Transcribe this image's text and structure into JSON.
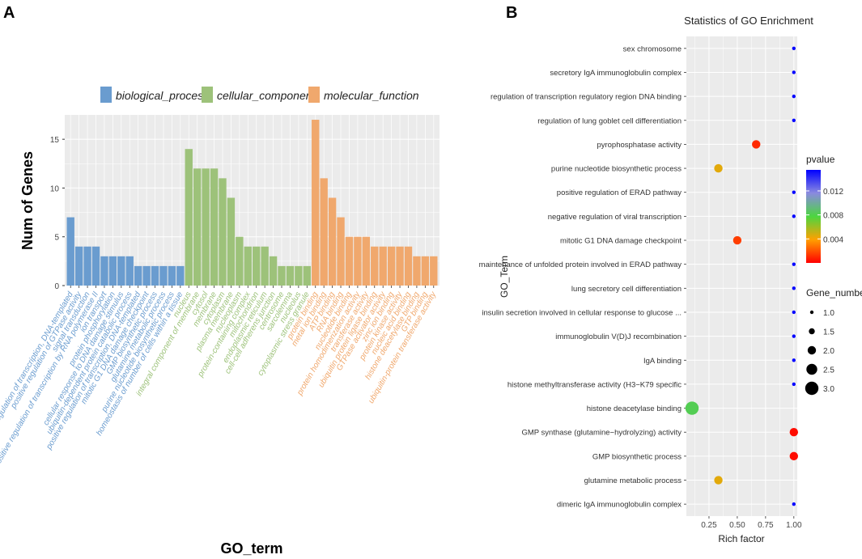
{
  "panel_labels": {
    "a": "A",
    "b": "B"
  },
  "chart_data": [
    {
      "type": "bar",
      "panel": "A",
      "ylabel": "Num of Genes",
      "xlabel": "GO_term",
      "ylim": [
        0,
        17.5
      ],
      "yticks": [
        0,
        5,
        10,
        15
      ],
      "legend": [
        {
          "name": "biological_process",
          "color": "#6a9ccf"
        },
        {
          "name": "cellular_component",
          "color": "#9dc27a"
        },
        {
          "name": "molecular_function",
          "color": "#f0a86d"
        }
      ],
      "categories": [
        "regulation of transcription, DNA-templated",
        "positive regulation of GTPase activity",
        "signal transduction",
        "positive regulation of transcription by RNA polymerase II",
        "ion transport",
        "protein phosphorylation",
        "cellular response to DNA damage stimulus",
        "ubiquitin-dependent protein catabolic process",
        "positive regulation of transcription, DNA-templated",
        "mitotic G1 DNA damage checkpoint",
        "GMP biosynthetic process",
        "glutamine metabolic process",
        "purine nucleotide biosynthetic process",
        "homeostasis of number of cells within a tissue",
        "nucleus",
        "integral component of membrane",
        "cytosol",
        "membrane",
        "cytoplasm",
        "plasma membrane",
        "nucleoplasm",
        "protein-containing complex",
        "mitochondrion",
        "endoplasmic reticulum",
        "cell-cell adherens junction",
        "centrosome",
        "sarcolemma",
        "nucleolus",
        "cytoplasmic stress granule",
        "protein binding",
        "metal ion binding",
        "ATP binding",
        "RNA binding",
        "nucleotide binding",
        "protein homodimerization activity",
        "transferase activity",
        "ubiquitin protein ligase binding",
        "GTPase activator activity",
        "zinc ion binding",
        "protein kinase activity",
        "nucleic acid binding",
        "histone deacetylase binding",
        "GTP binding",
        "ubiquitin-protein transferase activity"
      ],
      "values": [
        7,
        4,
        4,
        4,
        3,
        3,
        3,
        3,
        2,
        2,
        2,
        2,
        2,
        2,
        14,
        12,
        12,
        12,
        11,
        9,
        5,
        4,
        4,
        4,
        3,
        2,
        2,
        2,
        2,
        17,
        11,
        9,
        7,
        5,
        5,
        5,
        4,
        4,
        4,
        4,
        4,
        3,
        3,
        3
      ],
      "groups": [
        0,
        0,
        0,
        0,
        0,
        0,
        0,
        0,
        0,
        0,
        0,
        0,
        0,
        0,
        1,
        1,
        1,
        1,
        1,
        1,
        1,
        1,
        1,
        1,
        1,
        1,
        1,
        1,
        1,
        2,
        2,
        2,
        2,
        2,
        2,
        2,
        2,
        2,
        2,
        2,
        2,
        2,
        2,
        2
      ]
    },
    {
      "type": "scatter",
      "panel": "B",
      "title": "Statistics of GO Enrichment",
      "xlabel": "Rich factor",
      "ylabel": "GO_Term",
      "xlim": [
        0.05,
        1.03
      ],
      "xticks": [
        "0.25",
        "0.50",
        "0.75",
        "1.00"
      ],
      "xtick_values": [
        0.25,
        0.5,
        0.75,
        1.0
      ],
      "terms": [
        "sex chromosome",
        "secretory IgA immunoglobulin complex",
        "regulation of transcription regulatory region DNA binding",
        "regulation of lung goblet cell differentiation",
        "pyrophosphatase activity",
        "purine nucleotide biosynthetic process",
        "positive regulation of ERAD pathway",
        "negative regulation of viral transcription",
        "mitotic G1 DNA damage checkpoint",
        "maintenance of unfolded protein involved in ERAD pathway",
        "lung secretory cell differentiation",
        "insulin secretion involved in cellular response to glucose ...",
        "immunoglobulin V(D)J recombination",
        "IgA binding",
        "histone methyltransferase activity (H3−K79 specific",
        "histone deacetylase binding",
        "GMP synthase (glutamine−hydrolyzing) activity",
        "GMP biosynthetic process",
        "glutamine metabolic process",
        "dimeric IgA immunoglobulin complex"
      ],
      "rich_factor": [
        1.0,
        1.0,
        1.0,
        1.0,
        0.667,
        0.333,
        1.0,
        1.0,
        0.5,
        1.0,
        1.0,
        1.0,
        1.0,
        1.0,
        1.0,
        0.1,
        1.0,
        1.0,
        0.333,
        1.0
      ],
      "pvalue": [
        0.0155,
        0.0155,
        0.0155,
        0.0155,
        0.001,
        0.0045,
        0.0155,
        0.0155,
        0.0015,
        0.0155,
        0.0155,
        0.0155,
        0.0155,
        0.0155,
        0.0155,
        0.0082,
        0.0003,
        0.0003,
        0.0045,
        0.0155
      ],
      "gene_number": [
        1,
        1,
        1,
        1,
        2,
        2,
        1,
        1,
        2,
        1,
        1,
        1,
        1,
        1,
        1,
        3,
        2,
        2,
        2,
        1
      ],
      "color_legend": {
        "title": "pvalue",
        "range": [
          0.0,
          0.0155
        ],
        "ticks": [
          "0.012",
          "0.008",
          "0.004"
        ],
        "tick_values": [
          0.012,
          0.008,
          0.004
        ]
      },
      "size_legend": {
        "title": "Gene_number",
        "labels": [
          "1.0",
          "1.5",
          "2.0",
          "2.5",
          "3.0"
        ],
        "values": [
          1.0,
          1.5,
          2.0,
          2.5,
          3.0
        ]
      }
    }
  ]
}
